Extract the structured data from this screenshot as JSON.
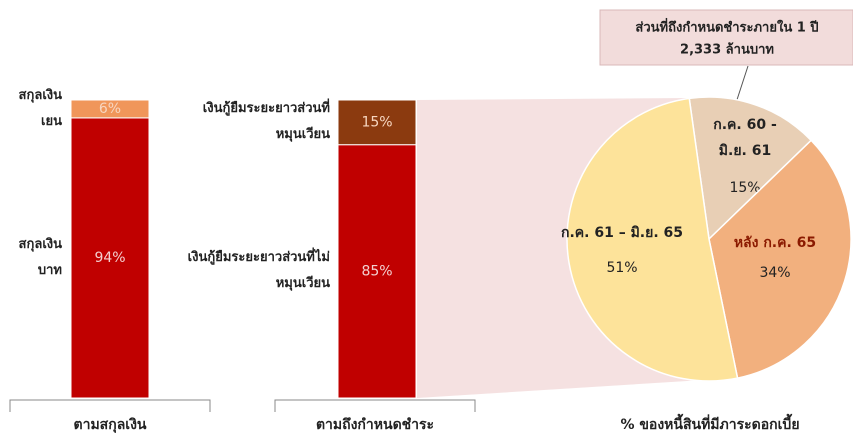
{
  "chart_data": [
    {
      "type": "bar",
      "stacked": true,
      "xlabel": "ตามสกุลเงิน",
      "series": [
        {
          "name": "สกุลเงินบาท",
          "color": "#c00000",
          "values": [
            94
          ],
          "value_labels": [
            "94%"
          ]
        },
        {
          "name": "สกุลเงินเยน",
          "color": "#f0965a",
          "values": [
            6
          ],
          "value_labels": [
            "6%"
          ]
        }
      ],
      "ylim": [
        0,
        100
      ]
    },
    {
      "type": "bar",
      "stacked": true,
      "xlabel": "ตามถึงกำหนดชำระ",
      "series": [
        {
          "name": "เงินกู้ยืมระยะยาวส่วนที่ไม่หมุนเวียน",
          "color": "#c00000",
          "values": [
            85
          ],
          "value_labels": [
            "85%"
          ]
        },
        {
          "name": "เงินกู้ยืมระยะยาวส่วนที่หมุนเวียน",
          "color": "#8b3a0f",
          "values": [
            15
          ],
          "value_labels": [
            "15%"
          ]
        }
      ],
      "ylim": [
        0,
        100
      ]
    },
    {
      "type": "pie",
      "title": "% ของหนี้สินที่มีภาระดอกเบี้ย",
      "labels": [
        "ก.ค. 60 - มิ.ย. 61",
        "หลัง ก.ค. 65",
        "ก.ค. 61 – มิ.ย. 65"
      ],
      "values": [
        15,
        34,
        51
      ],
      "value_labels": [
        "15%",
        "34%",
        "51%"
      ],
      "colors": [
        "#e8cfb5",
        "#f2b07e",
        "#fde39a"
      ],
      "annotation": {
        "text": "ส่วนที่ถึงกำหนดชำระภายใน 1 ปี",
        "subtext": "2,333 ล้านบาท"
      }
    }
  ]
}
